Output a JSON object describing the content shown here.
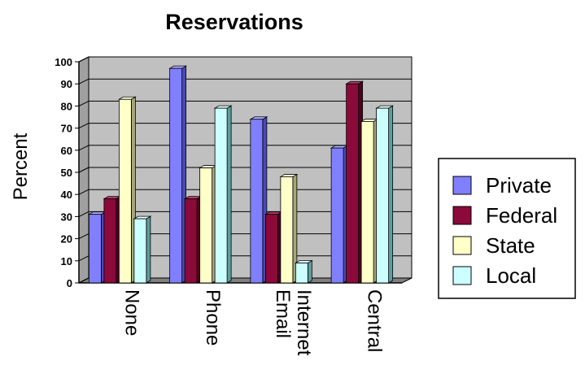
{
  "chart_data": {
    "type": "bar",
    "title": "Reservations",
    "ylabel": "Percent",
    "xlabel": "",
    "ylim": [
      0,
      100
    ],
    "yticks": [
      0,
      10,
      20,
      30,
      40,
      50,
      60,
      70,
      80,
      90,
      100
    ],
    "grid": true,
    "legend_position": "right",
    "categories": [
      [
        "None"
      ],
      [
        "Phone"
      ],
      [
        "Internet",
        "Email"
      ],
      [
        "Central"
      ]
    ],
    "series": [
      {
        "name": "Private",
        "values": [
          31,
          97,
          74,
          61
        ],
        "color": "#8080ff",
        "side": "#4a4ab8",
        "top": "#b0b0ff"
      },
      {
        "name": "Federal",
        "values": [
          38,
          38,
          31,
          90
        ],
        "color": "#8b0a3a",
        "side": "#4d0020",
        "top": "#b2406a"
      },
      {
        "name": "State",
        "values": [
          83,
          52,
          48,
          73
        ],
        "color": "#ffffc8",
        "side": "#a6a67a",
        "top": "#ffffe6"
      },
      {
        "name": "Local",
        "values": [
          29,
          79,
          9,
          79
        ],
        "color": "#ccffff",
        "side": "#5e9e9e",
        "top": "#eaffff"
      }
    ]
  }
}
